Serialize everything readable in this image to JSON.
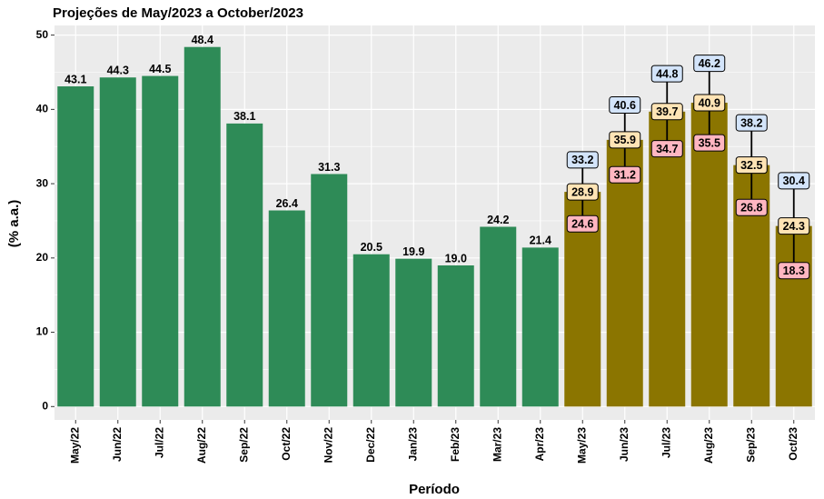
{
  "chart_data": {
    "type": "bar",
    "title": "Projeções de May/2023 a October/2023",
    "x_label": "Período",
    "y_label": "(% a.a.)",
    "categories": [
      "May/22",
      "Jun/22",
      "Jul/22",
      "Aug/22",
      "Sep/22",
      "Oct/22",
      "Nov/22",
      "Dec/22",
      "Jan/23",
      "Feb/23",
      "Mar/23",
      "Apr/23",
      "May/23",
      "Jun/23",
      "Jul/23",
      "Aug/23",
      "Sep/23",
      "Oct/23"
    ],
    "series": [
      {
        "color": "#2e8b57",
        "values": [
          43.1,
          44.3,
          44.5,
          48.4,
          38.1,
          26.4,
          31.3,
          20.5,
          19.9,
          19.0,
          24.2,
          21.4,
          null,
          null,
          null,
          null,
          null,
          null
        ],
        "value_labels": [
          "43.1",
          "44.3",
          "44.5",
          "48.4",
          "38.1",
          "26.4",
          "31.3",
          "20.5",
          "19.9",
          "19.0",
          "24.2",
          "21.4",
          null,
          null,
          null,
          null,
          null,
          null
        ]
      },
      {
        "color": "#8b7500",
        "label_color": "#ffe4b5",
        "upper_color": "#d3e4fa",
        "lower_color": "#ffb6c1",
        "values": [
          null,
          null,
          null,
          null,
          null,
          null,
          null,
          null,
          null,
          null,
          null,
          null,
          28.9,
          35.9,
          39.7,
          40.9,
          32.5,
          24.3
        ],
        "upper": [
          null,
          null,
          null,
          null,
          null,
          null,
          null,
          null,
          null,
          null,
          null,
          null,
          33.2,
          40.6,
          44.8,
          46.2,
          38.2,
          30.4
        ],
        "lower": [
          null,
          null,
          null,
          null,
          null,
          null,
          null,
          null,
          null,
          null,
          null,
          null,
          24.6,
          31.2,
          34.7,
          35.5,
          26.8,
          18.3
        ]
      }
    ],
    "ylim": [
      -1.8,
      51.3
    ],
    "yticks": [
      0,
      10,
      20,
      30,
      40,
      50
    ],
    "grid": true
  }
}
